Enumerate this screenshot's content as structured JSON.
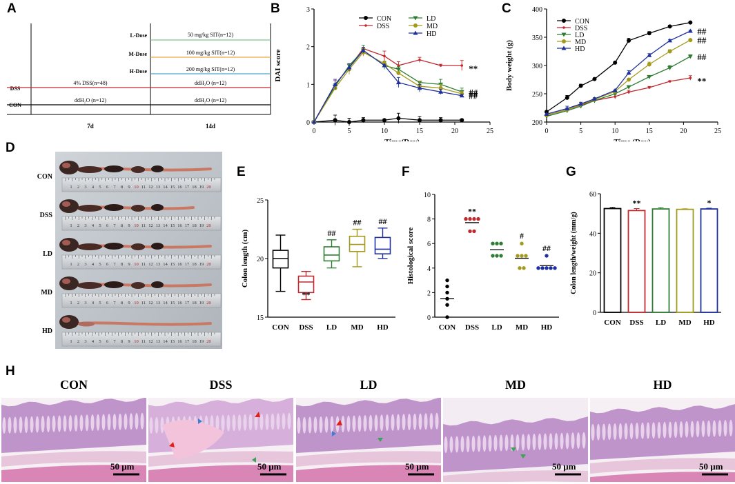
{
  "colors": {
    "con": "#000000",
    "dss": "#c0282d",
    "ld": "#2e7d32",
    "md": "#a39a1c",
    "hd": "#1f2f9c",
    "ld_line": "#7fbf8f",
    "md_line": "#e5a845",
    "hd_line": "#4aa3c7",
    "dss_line": "#c0282d"
  },
  "panel_labels": {
    "a": "A",
    "b": "B",
    "c": "C",
    "d": "D",
    "e": "E",
    "f": "F",
    "g": "G",
    "h": "H"
  },
  "panel_a": {
    "rows": [
      {
        "group": "L-Dose",
        "text": "50 mg/kg SIT(n=12)"
      },
      {
        "group": "M-Dose",
        "text": "100 mg/kg SIT(n=12)"
      },
      {
        "group": "H-Dose",
        "text": "200 mg/kg SIT(n=12)"
      },
      {
        "group": "DSS",
        "left": "4% DSS(n=48)",
        "text": "ddH₂O (n=12)"
      },
      {
        "group": "CON",
        "left": "ddH₂O (n=12)",
        "text": "ddH₂O (n=12)"
      }
    ],
    "period1": "7d",
    "period2": "14d"
  },
  "chart_data": [
    {
      "id": "B",
      "type": "line",
      "title": "",
      "xlabel": "Time(Day)",
      "ylabel": "DAI score",
      "xlim": [
        0,
        25
      ],
      "ylim": [
        0,
        3
      ],
      "xticks": [
        0,
        5,
        10,
        15,
        20,
        25
      ],
      "yticks": [
        0,
        1,
        2,
        3
      ],
      "x": [
        0,
        3,
        5,
        7,
        10,
        12,
        15,
        18,
        21
      ],
      "series": [
        {
          "name": "CON",
          "values": [
            0,
            0.05,
            0,
            0.05,
            0.05,
            0.1,
            0.05,
            0.05,
            0.05
          ]
        },
        {
          "name": "DSS",
          "values": [
            0,
            1.0,
            1.45,
            1.95,
            1.75,
            1.5,
            1.65,
            1.5,
            1.5
          ]
        },
        {
          "name": "LD",
          "values": [
            0,
            0.95,
            1.5,
            1.9,
            1.5,
            1.4,
            1.05,
            1.0,
            0.8
          ]
        },
        {
          "name": "MD",
          "values": [
            0,
            0.9,
            1.4,
            1.85,
            1.55,
            1.3,
            0.95,
            0.9,
            0.75
          ]
        },
        {
          "name": "HD",
          "values": [
            0,
            1.0,
            1.45,
            1.9,
            1.5,
            1.05,
            0.9,
            0.8,
            0.7
          ]
        }
      ],
      "annotations": [
        {
          "text": "**",
          "series": "DSS"
        },
        {
          "text": "##",
          "series": "LD"
        },
        {
          "text": "##",
          "series": "MD"
        },
        {
          "text": "##",
          "series": "HD"
        }
      ],
      "legend": "top-right"
    },
    {
      "id": "C",
      "type": "line",
      "title": "",
      "xlabel": "Time (Day)",
      "ylabel": "Body weight (g)",
      "xlim": [
        0,
        25
      ],
      "ylim": [
        200,
        400
      ],
      "xticks": [
        0,
        5,
        10,
        15,
        20,
        25
      ],
      "yticks": [
        200,
        250,
        300,
        350,
        400
      ],
      "x": [
        0,
        3,
        5,
        7,
        10,
        12,
        15,
        18,
        21
      ],
      "series": [
        {
          "name": "CON",
          "values": [
            218,
            243,
            264,
            276,
            305,
            344,
            357,
            369,
            376
          ]
        },
        {
          "name": "DSS",
          "values": [
            212,
            222,
            230,
            238,
            245,
            253,
            261,
            272,
            278
          ]
        },
        {
          "name": "LD",
          "values": [
            210,
            220,
            228,
            238,
            250,
            262,
            280,
            296,
            316
          ]
        },
        {
          "name": "MD",
          "values": [
            212,
            222,
            231,
            240,
            254,
            275,
            302,
            325,
            345
          ]
        },
        {
          "name": "HD",
          "values": [
            214,
            224,
            232,
            241,
            256,
            287,
            318,
            344,
            361
          ]
        }
      ],
      "annotations": [
        {
          "text": "##",
          "series": "HD"
        },
        {
          "text": "##",
          "series": "MD"
        },
        {
          "text": "##",
          "series": "LD"
        },
        {
          "text": "**",
          "series": "DSS"
        }
      ],
      "legend": "top-left"
    },
    {
      "id": "E",
      "type": "box",
      "title": "",
      "xlabel": "",
      "ylabel": "Colon length (cm)",
      "ylim": [
        15,
        25
      ],
      "yticks": [
        15,
        20,
        25
      ],
      "categories": [
        "CON",
        "DSS",
        "LD",
        "MD",
        "HD"
      ],
      "boxes": [
        {
          "min": 17.2,
          "q1": 19.2,
          "median": 20.0,
          "q3": 20.7,
          "max": 22.0
        },
        {
          "min": 16.5,
          "q1": 17.1,
          "median": 18.0,
          "q3": 18.5,
          "max": 18.9
        },
        {
          "min": 19.2,
          "q1": 19.8,
          "median": 20.3,
          "q3": 21.0,
          "max": 21.6
        },
        {
          "min": 19.3,
          "q1": 20.6,
          "median": 21.2,
          "q3": 21.9,
          "max": 22.5
        },
        {
          "min": 20.0,
          "q1": 20.4,
          "median": 20.8,
          "q3": 21.8,
          "max": 22.6
        }
      ],
      "annotations": [
        "",
        "**",
        "##",
        "##",
        "##"
      ]
    },
    {
      "id": "F",
      "type": "scatter",
      "title": "",
      "xlabel": "",
      "ylabel": "Histological score",
      "ylim": [
        0,
        10
      ],
      "yticks": [
        0,
        2,
        4,
        6,
        8,
        10
      ],
      "categories": [
        "CON",
        "DSS",
        "LD",
        "MD",
        "HD"
      ],
      "points": [
        [
          0,
          1,
          1.5,
          2,
          2.5,
          3
        ],
        [
          7,
          7,
          8,
          8,
          8,
          8
        ],
        [
          5,
          5,
          5,
          6,
          6,
          6
        ],
        [
          4,
          4,
          5,
          5,
          5,
          6
        ],
        [
          4,
          4,
          4,
          4,
          4,
          5
        ]
      ],
      "means": [
        1.5,
        7.7,
        5.5,
        4.8,
        4.2
      ],
      "annotations": [
        "",
        "**",
        "",
        "#",
        "##"
      ]
    },
    {
      "id": "G",
      "type": "bar",
      "title": "",
      "xlabel": "",
      "ylabel": "Colon length/weight (mm/g)",
      "ylim": [
        0,
        60
      ],
      "yticks": [
        0,
        20,
        40,
        60
      ],
      "categories": [
        "CON",
        "DSS",
        "LD",
        "MD",
        "HD"
      ],
      "values": [
        52.5,
        51.5,
        52.3,
        52.1,
        52.3
      ],
      "errors": [
        0.6,
        1.0,
        0.7,
        0.3,
        0.4
      ],
      "annotations": [
        "",
        "**",
        "",
        "",
        "*"
      ]
    }
  ],
  "panel_d": {
    "labels": [
      "CON",
      "DSS",
      "LD",
      "MD",
      "HD"
    ],
    "ruler_numbers": [
      "1",
      "2",
      "3",
      "4",
      "5",
      "6",
      "7",
      "8",
      "9",
      "10",
      "11",
      "12",
      "13",
      "14",
      "15",
      "16",
      "17",
      "18",
      "19",
      "20"
    ]
  },
  "panel_h": {
    "titles": [
      "CON",
      "DSS",
      "LD",
      "MD",
      "HD"
    ],
    "scalebar": "50 μm"
  }
}
